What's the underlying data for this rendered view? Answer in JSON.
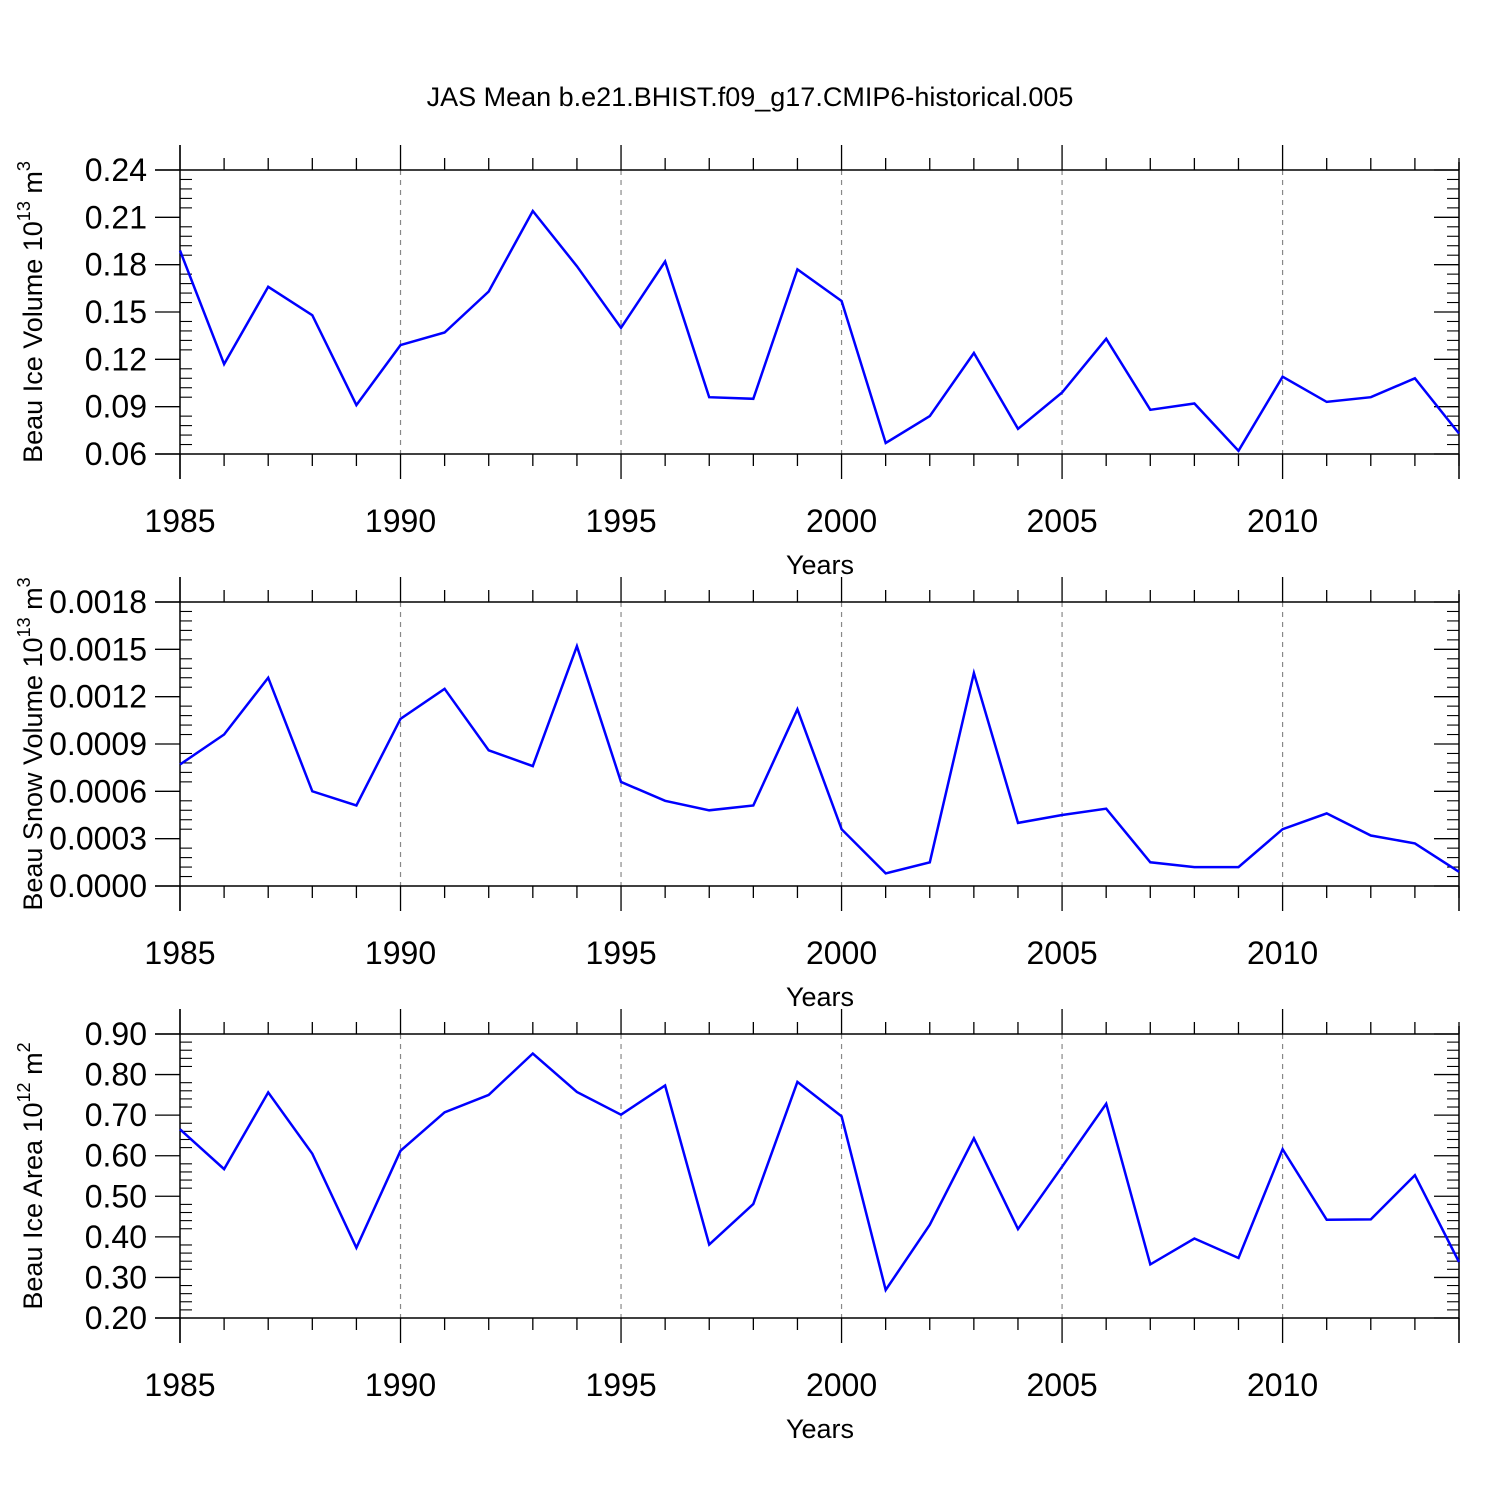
{
  "figure_title": "JAS Mean b.e21.BHIST.f09_g17.CMIP6-historical.005",
  "line_color": "#0000ff",
  "chart_data": [
    {
      "type": "line",
      "ylabel": "Beau Ice Volume 10",
      "ylabel_exp": "13",
      "ylabel_unit": "m",
      "ylabel_unit_exp": "3",
      "xlabel": "Years",
      "xlim": [
        1985,
        2014
      ],
      "ylim": [
        0.06,
        0.24
      ],
      "xticks": [
        1985,
        1990,
        1995,
        2000,
        2005,
        2010
      ],
      "yticks": [
        "0.06",
        "0.09",
        "0.12",
        "0.15",
        "0.18",
        "0.21",
        "0.24"
      ],
      "grid": "vertical dashed",
      "x": [
        1985,
        1986,
        1987,
        1988,
        1989,
        1990,
        1991,
        1992,
        1993,
        1994,
        1995,
        1996,
        1997,
        1998,
        1999,
        2000,
        2001,
        2002,
        2003,
        2004,
        2005,
        2006,
        2007,
        2008,
        2009,
        2010,
        2011,
        2012,
        2013,
        2014
      ],
      "values": [
        0.189,
        0.117,
        0.166,
        0.148,
        0.091,
        0.129,
        0.137,
        0.163,
        0.214,
        0.179,
        0.14,
        0.182,
        0.096,
        0.095,
        0.177,
        0.157,
        0.067,
        0.084,
        0.124,
        0.076,
        0.099,
        0.133,
        0.088,
        0.092,
        0.062,
        0.109,
        0.093,
        0.096,
        0.108,
        0.073
      ]
    },
    {
      "type": "line",
      "ylabel": "Beau Snow Volume 10",
      "ylabel_exp": "13",
      "ylabel_unit": "m",
      "ylabel_unit_exp": "3",
      "xlabel": "Years",
      "xlim": [
        1985,
        2014
      ],
      "ylim": [
        0.0,
        0.0018
      ],
      "xticks": [
        1985,
        1990,
        1995,
        2000,
        2005,
        2010
      ],
      "yticks": [
        "0.0000",
        "0.0003",
        "0.0006",
        "0.0009",
        "0.0012",
        "0.0015",
        "0.0018"
      ],
      "grid": "vertical dashed",
      "x": [
        1985,
        1986,
        1987,
        1988,
        1989,
        1990,
        1991,
        1992,
        1993,
        1994,
        1995,
        1996,
        1997,
        1998,
        1999,
        2000,
        2001,
        2002,
        2003,
        2004,
        2005,
        2006,
        2007,
        2008,
        2009,
        2010,
        2011,
        2012,
        2013,
        2014
      ],
      "values": [
        0.00077,
        0.00096,
        0.00132,
        0.0006,
        0.00051,
        0.00106,
        0.00125,
        0.00086,
        0.00076,
        0.00152,
        0.00066,
        0.00054,
        0.00048,
        0.00051,
        0.00112,
        0.00036,
        8e-05,
        0.00015,
        0.00135,
        0.0004,
        0.00045,
        0.00049,
        0.00015,
        0.00012,
        0.00012,
        0.00036,
        0.00046,
        0.00032,
        0.00027,
        9e-05
      ]
    },
    {
      "type": "line",
      "ylabel": "Beau Ice Area 10",
      "ylabel_exp": "12",
      "ylabel_unit": "m",
      "ylabel_unit_exp": "2",
      "xlabel": "Years",
      "xlim": [
        1985,
        2014
      ],
      "ylim": [
        0.2,
        0.9
      ],
      "xticks": [
        1985,
        1990,
        1995,
        2000,
        2005,
        2010
      ],
      "yticks": [
        "0.20",
        "0.30",
        "0.40",
        "0.50",
        "0.60",
        "0.70",
        "0.80",
        "0.90"
      ],
      "grid": "vertical dashed",
      "x": [
        1985,
        1986,
        1987,
        1988,
        1989,
        1990,
        1991,
        1992,
        1993,
        1994,
        1995,
        1996,
        1997,
        1998,
        1999,
        2000,
        2001,
        2002,
        2003,
        2004,
        2005,
        2006,
        2007,
        2008,
        2009,
        2010,
        2011,
        2012,
        2013,
        2014
      ],
      "values": [
        0.665,
        0.567,
        0.756,
        0.605,
        0.373,
        0.612,
        0.707,
        0.75,
        0.852,
        0.757,
        0.701,
        0.773,
        0.381,
        0.481,
        0.782,
        0.697,
        0.269,
        0.43,
        0.643,
        0.419,
        0.573,
        0.728,
        0.332,
        0.396,
        0.348,
        0.616,
        0.442,
        0.443,
        0.552,
        0.338
      ]
    }
  ]
}
